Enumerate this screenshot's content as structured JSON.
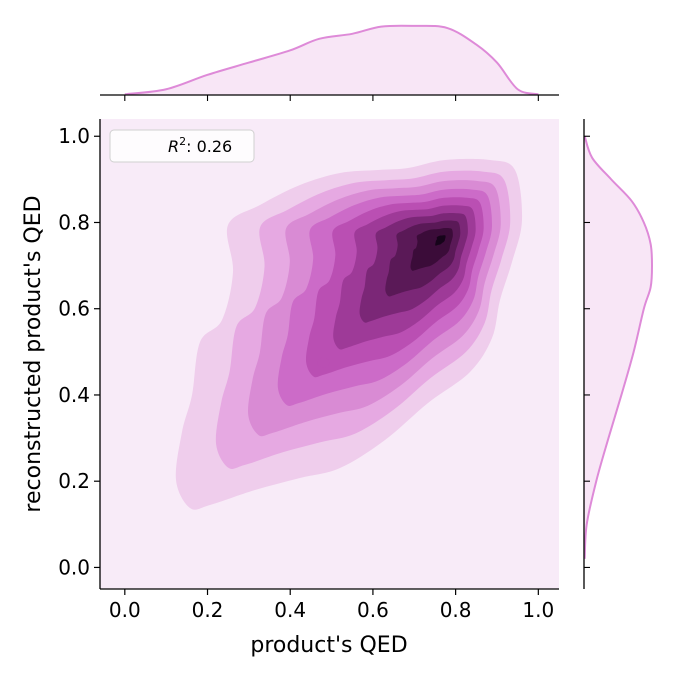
{
  "chart_data": {
    "type": "kde-joint",
    "xlabel": "product's QED",
    "ylabel": "reconstructed product's QED",
    "xlim": [
      -0.06,
      1.05
    ],
    "ylim": [
      -0.05,
      1.04
    ],
    "xticks": [
      0.0,
      0.2,
      0.4,
      0.6,
      0.8,
      1.0
    ],
    "yticks": [
      0.0,
      0.2,
      0.4,
      0.6,
      0.8,
      1.0
    ],
    "xtick_labels": [
      "0.0",
      "0.2",
      "0.4",
      "0.6",
      "0.8",
      "1.0"
    ],
    "ytick_labels": [
      "0.0",
      "0.2",
      "0.4",
      "0.6",
      "0.8",
      "1.0"
    ],
    "legend": {
      "label_base": "R",
      "label_sup": "2",
      "label_rest": ": 0.26",
      "placement": "top-left"
    },
    "colors": {
      "background": "#f8ebf8",
      "marginal_line": "#de8ad8",
      "marginal_fill": "#f8e6f6",
      "levels": [
        "#efcdec",
        "#e6a9e2",
        "#d98bd4",
        "#cc6bc8",
        "#ba4fb3",
        "#9e3a98",
        "#7b2777",
        "#5a1957",
        "#3b0c39",
        "#16041a"
      ]
    },
    "density_peak": {
      "x": 0.77,
      "y": 0.765
    },
    "marginal_x": {
      "x": [
        0.0,
        0.1,
        0.2,
        0.3,
        0.4,
        0.47,
        0.55,
        0.62,
        0.7,
        0.78,
        0.85,
        0.9,
        0.95,
        1.0
      ],
      "density": [
        0.01,
        0.08,
        0.28,
        0.45,
        0.62,
        0.78,
        0.85,
        0.95,
        0.96,
        0.93,
        0.7,
        0.45,
        0.08,
        0.01
      ]
    },
    "marginal_y": {
      "y": [
        0.02,
        0.1,
        0.2,
        0.3,
        0.4,
        0.5,
        0.6,
        0.65,
        0.7,
        0.75,
        0.8,
        0.85,
        0.9,
        0.95,
        1.0
      ],
      "density": [
        0.01,
        0.04,
        0.18,
        0.36,
        0.55,
        0.73,
        0.88,
        0.98,
        1.0,
        0.98,
        0.88,
        0.7,
        0.4,
        0.12,
        0.01
      ]
    }
  }
}
